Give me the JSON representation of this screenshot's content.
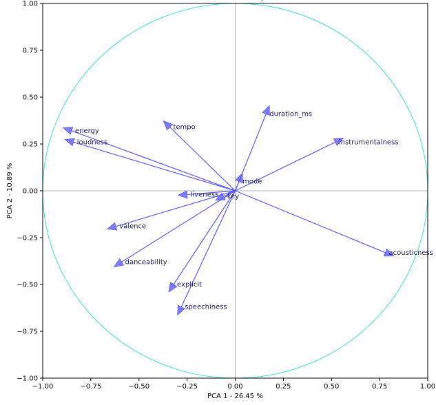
{
  "chart_data": {
    "type": "scatter",
    "subtype": "pca-correlation-circle",
    "title": "",
    "xlabel": "PCA 1 - 26.45 %",
    "ylabel": "PCA 2 - 10.89 %",
    "xlim": [
      -1.0,
      1.0
    ],
    "ylim": [
      -1.0,
      1.0
    ],
    "xticks": [
      "−1.00",
      "−0.75",
      "−0.50",
      "−0.25",
      "0.00",
      "0.25",
      "0.50",
      "0.75",
      "1.00"
    ],
    "yticks": [
      "−1.00",
      "−0.75",
      "−0.50",
      "−0.25",
      "0.00",
      "0.25",
      "0.50",
      "0.75",
      "1.00"
    ],
    "xtick_values": [
      -1.0,
      -0.75,
      -0.5,
      -0.25,
      0.0,
      0.25,
      0.5,
      0.75,
      1.0
    ],
    "ytick_values": [
      -1.0,
      -0.75,
      -0.5,
      -0.25,
      0.0,
      0.25,
      0.5,
      0.75,
      1.0
    ],
    "grid": false,
    "unit_circle": true,
    "reference_lines": [
      0,
      0
    ],
    "colors": {
      "arrow": "#5b5bf0",
      "circle": "#40e0d0",
      "reference": "#b0b0b0",
      "label": "#1a1a5e"
    },
    "arrows": [
      {
        "name": "energy",
        "x": -0.85,
        "y": 0.32
      },
      {
        "name": "loudness",
        "x": -0.84,
        "y": 0.26
      },
      {
        "name": "tempo",
        "x": -0.34,
        "y": 0.34
      },
      {
        "name": "duration_ms",
        "x": 0.16,
        "y": 0.41
      },
      {
        "name": "instrumentalness",
        "x": 0.52,
        "y": 0.26
      },
      {
        "name": "mode",
        "x": 0.02,
        "y": 0.05
      },
      {
        "name": "liveness",
        "x": -0.25,
        "y": -0.02
      },
      {
        "name": "key",
        "x": -0.06,
        "y": -0.03
      },
      {
        "name": "valence",
        "x": -0.62,
        "y": -0.19
      },
      {
        "name": "acousticness",
        "x": 0.78,
        "y": -0.33
      },
      {
        "name": "danceability",
        "x": -0.59,
        "y": -0.38
      },
      {
        "name": "explicit",
        "x": -0.32,
        "y": -0.5
      },
      {
        "name": "speechiness",
        "x": -0.28,
        "y": -0.62
      }
    ],
    "top_cut_label": "p"
  }
}
